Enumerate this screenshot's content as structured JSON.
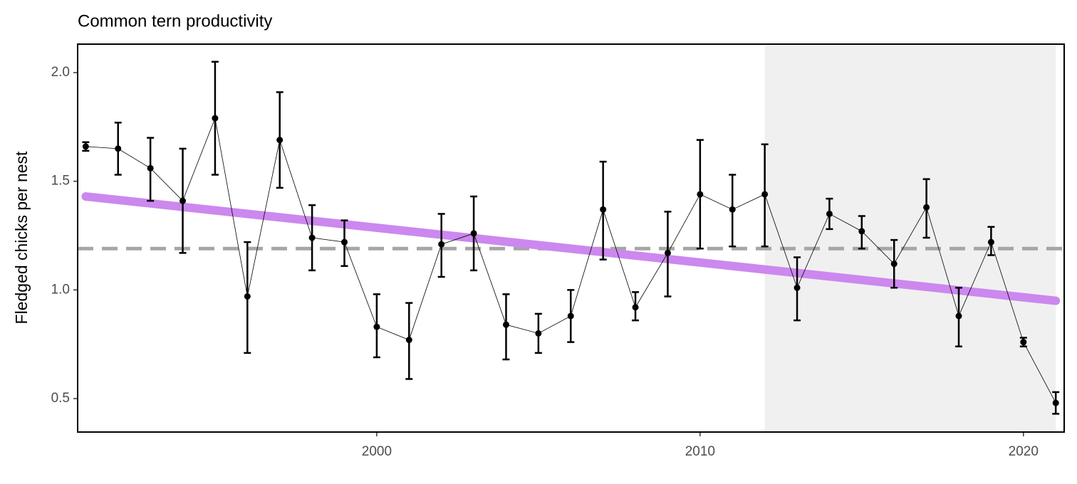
{
  "chart_data": {
    "type": "line",
    "title": "Common tern productivity",
    "y_label": "Fledged chicks per nest",
    "x": [
      1991,
      1992,
      1993,
      1994,
      1995,
      1996,
      1997,
      1998,
      1999,
      2000,
      2001,
      2002,
      2003,
      2004,
      2005,
      2006,
      2007,
      2008,
      2009,
      2010,
      2011,
      2012,
      2013,
      2014,
      2015,
      2016,
      2017,
      2018,
      2019,
      2020,
      2021
    ],
    "values": [
      1.66,
      1.65,
      1.56,
      1.41,
      1.79,
      0.97,
      1.69,
      1.24,
      1.22,
      0.83,
      0.77,
      1.21,
      1.26,
      0.84,
      0.8,
      0.88,
      1.37,
      0.92,
      1.17,
      1.44,
      1.37,
      1.44,
      1.01,
      1.35,
      1.27,
      1.12,
      1.38,
      0.88,
      1.22,
      0.76,
      0.48
    ],
    "lower": [
      1.64,
      1.53,
      1.41,
      1.17,
      1.53,
      0.71,
      1.47,
      1.09,
      1.11,
      0.69,
      0.59,
      1.06,
      1.09,
      0.68,
      0.71,
      0.76,
      1.14,
      0.86,
      0.97,
      1.19,
      1.2,
      1.2,
      0.86,
      1.28,
      1.19,
      1.01,
      1.24,
      0.74,
      1.16,
      0.74,
      0.43
    ],
    "upper": [
      1.68,
      1.77,
      1.7,
      1.65,
      2.05,
      1.22,
      1.91,
      1.39,
      1.32,
      0.98,
      0.94,
      1.35,
      1.43,
      0.98,
      0.89,
      1.0,
      1.59,
      0.99,
      1.36,
      1.69,
      1.53,
      1.67,
      1.15,
      1.42,
      1.34,
      1.23,
      1.51,
      1.01,
      1.29,
      0.78,
      0.53
    ],
    "color": "#000000",
    "trend": {
      "x": [
        1991,
        2021
      ],
      "values": [
        1.43,
        0.95
      ],
      "color": "#cc88ee"
    },
    "mean_line": {
      "value": 1.19,
      "color": "#a6a6a6"
    },
    "shade_x": [
      2012.0,
      2021.0
    ],
    "shade_color": "#f0f0f0",
    "xlim": [
      1990.75,
      2021.26
    ],
    "ylim": [
      0.346,
      2.131
    ],
    "xticks": [
      2000,
      2010,
      2020
    ],
    "yticks": [
      0.5,
      {
        "value": 1.0,
        "label": "1.0"
      },
      1.5,
      {
        "value": 2.0,
        "label": "2.0"
      }
    ]
  }
}
